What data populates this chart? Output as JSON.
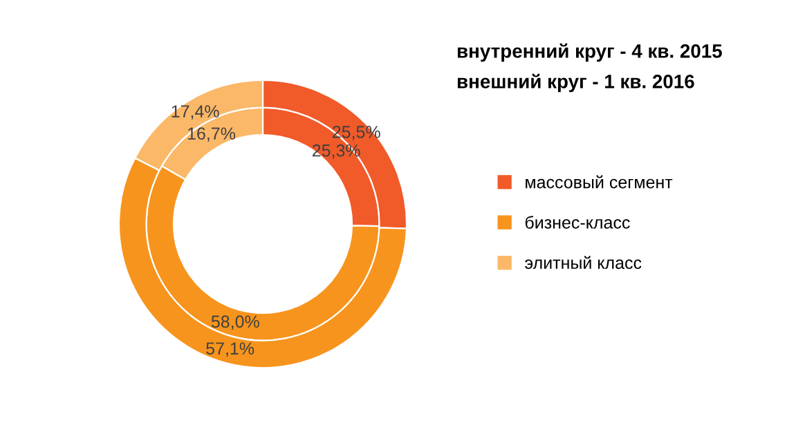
{
  "chart_data": {
    "type": "donut",
    "annotations": [
      "внутренний круг - 4 кв. 2015",
      "внешний круг - 1 кв. 2016"
    ],
    "categories": [
      "массовый сегмент",
      "бизнес-класс",
      "элитный класс"
    ],
    "colors": [
      "#f15a29",
      "#f7941d",
      "#fbb868"
    ],
    "series": [
      {
        "values": [
          25.3,
          58.0,
          16.7
        ],
        "value_labels": [
          "25,3%",
          "58,0%",
          "16,7%"
        ]
      },
      {
        "values": [
          25.5,
          57.1,
          17.4
        ],
        "value_labels": [
          "25,5%",
          "57,1%",
          "17,4%"
        ]
      }
    ],
    "legend": "right"
  }
}
